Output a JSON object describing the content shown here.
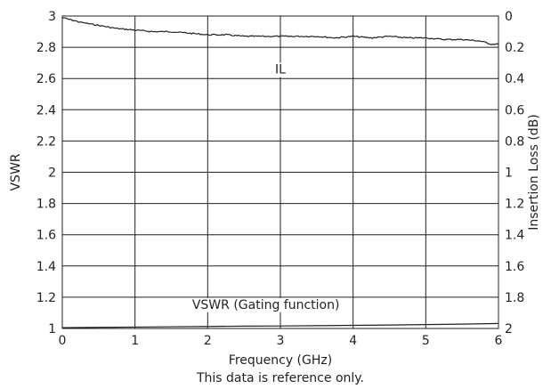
{
  "chart_data": {
    "type": "line",
    "title": "",
    "xlabel": "Frequency (GHz)",
    "ylabel": "VSWR",
    "y2label": "Insertion Loss (dB)",
    "xlim": [
      0,
      6
    ],
    "ylim": [
      1,
      3
    ],
    "y2lim": [
      2,
      0
    ],
    "x_ticks": [
      0,
      1,
      2,
      3,
      4,
      5,
      6
    ],
    "x_tick_labels": [
      "0",
      "1",
      "2",
      "3",
      "4",
      "5",
      "6"
    ],
    "y_ticks": [
      1,
      1.2,
      1.4,
      1.6,
      1.8,
      2,
      2.2,
      2.4,
      2.6,
      2.8,
      3
    ],
    "y_tick_labels": [
      "1",
      "1.2",
      "1.4",
      "1.6",
      "1.8",
      "2",
      "2.2",
      "2.4",
      "2.6",
      "2.8",
      "3"
    ],
    "y2_ticks": [
      0,
      0.2,
      0.4,
      0.6,
      0.8,
      1,
      1.2,
      1.4,
      1.6,
      1.8,
      2
    ],
    "y2_tick_labels": [
      "0",
      "0.2",
      "0.4",
      "0.6",
      "0.8",
      "1",
      "1.2",
      "1.4",
      "1.6",
      "1.8",
      "2"
    ],
    "grid": true,
    "series": [
      {
        "name": "IL",
        "axis": "right",
        "x": [
          0,
          0.25,
          0.5,
          0.75,
          1,
          1.25,
          1.5,
          1.75,
          2,
          2.25,
          2.5,
          2.75,
          3,
          3.25,
          3.5,
          3.75,
          4,
          4.25,
          4.5,
          4.75,
          5,
          5.25,
          5.5,
          5.75,
          5.9,
          6
        ],
        "y": [
          0.01,
          0.04,
          0.06,
          0.08,
          0.09,
          0.1,
          0.1,
          0.11,
          0.12,
          0.12,
          0.13,
          0.13,
          0.13,
          0.13,
          0.13,
          0.14,
          0.13,
          0.14,
          0.13,
          0.14,
          0.14,
          0.15,
          0.15,
          0.16,
          0.18,
          0.18
        ]
      },
      {
        "name": "VSWR (Gating function)",
        "axis": "left",
        "x": [
          0,
          0.5,
          1,
          1.5,
          2,
          2.5,
          3,
          3.5,
          4,
          4.5,
          5,
          5.5,
          6
        ],
        "y": [
          1.005,
          1.007,
          1.009,
          1.011,
          1.013,
          1.015,
          1.016,
          1.018,
          1.02,
          1.022,
          1.025,
          1.028,
          1.032
        ]
      }
    ],
    "annotations": [
      {
        "text": "IL",
        "x": 3,
        "y": 2.66
      },
      {
        "text": "VSWR (Gating function)",
        "x": 2.8,
        "y": 1.155
      }
    ],
    "footnote": "This data is reference only.",
    "colors": {
      "line": "#231f20",
      "grid": "#231f20",
      "text": "#231f20",
      "background": "#ffffff"
    }
  }
}
